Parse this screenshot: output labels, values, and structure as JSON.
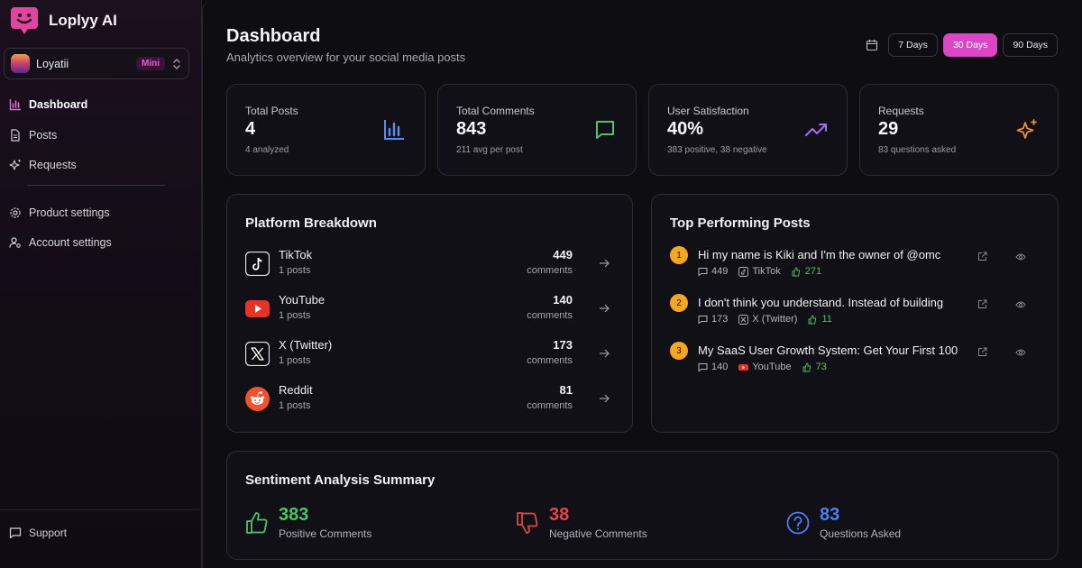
{
  "brand": {
    "name": "Loplyy AI"
  },
  "workspace": {
    "name": "Loyatii",
    "plan": "Mini"
  },
  "nav": {
    "items": [
      {
        "label": "Dashboard",
        "icon": "bar-chart-icon"
      },
      {
        "label": "Posts",
        "icon": "document-icon"
      },
      {
        "label": "Requests",
        "icon": "sparkles-icon"
      }
    ],
    "settings": [
      {
        "label": "Product settings",
        "icon": "gear-icon"
      },
      {
        "label": "Account settings",
        "icon": "user-gear-icon"
      }
    ],
    "support": "Support"
  },
  "header": {
    "title": "Dashboard",
    "subtitle": "Analytics overview for your social media posts",
    "ranges": [
      "7 Days",
      "30 Days",
      "90 Days"
    ],
    "active_range": "30 Days"
  },
  "stats": [
    {
      "label": "Total Posts",
      "value": "4",
      "note": "4 analyzed",
      "icon": "bar-chart-icon",
      "color": "#5b8def"
    },
    {
      "label": "Total Comments",
      "value": "843",
      "note": "211 avg per post",
      "icon": "message-icon",
      "color": "#4cc56a"
    },
    {
      "label": "User Satisfaction",
      "value": "40%",
      "note": "383 positive, 38 negative",
      "icon": "trending-up-icon",
      "color": "#a66df0"
    },
    {
      "label": "Requests",
      "value": "29",
      "note": "83 questions asked",
      "icon": "sparkles-icon",
      "color": "#f08a3c"
    }
  ],
  "platform_breakdown": {
    "title": "Platform Breakdown",
    "unit": "comments",
    "rows": [
      {
        "name": "TikTok",
        "posts": "1 posts",
        "count": "449",
        "icon": "tiktok-icon"
      },
      {
        "name": "YouTube",
        "posts": "1 posts",
        "count": "140",
        "icon": "youtube-icon"
      },
      {
        "name": "X (Twitter)",
        "posts": "1 posts",
        "count": "173",
        "icon": "x-icon"
      },
      {
        "name": "Reddit",
        "posts": "1 posts",
        "count": "81",
        "icon": "reddit-icon"
      }
    ]
  },
  "top_posts": {
    "title": "Top Performing Posts",
    "rows": [
      {
        "rank": "1",
        "title": "Hi my name is Kiki and I'm the owner of @omc",
        "comments": "449",
        "platform": "TikTok",
        "likes": "271"
      },
      {
        "rank": "2",
        "title": "I don't think you understand. Instead of building",
        "comments": "173",
        "platform": "X (Twitter)",
        "likes": "11"
      },
      {
        "rank": "3",
        "title": "My SaaS User Growth System: Get Your First 100",
        "comments": "140",
        "platform": "YouTube",
        "likes": "73"
      }
    ]
  },
  "sentiment": {
    "title": "Sentiment Analysis Summary",
    "items": [
      {
        "value": "383",
        "label": "Positive Comments",
        "icon": "thumbs-up-icon",
        "color": "#4cc56a"
      },
      {
        "value": "38",
        "label": "Negative Comments",
        "icon": "thumbs-down-icon",
        "color": "#e04848"
      },
      {
        "value": "83",
        "label": "Questions Asked",
        "icon": "question-icon",
        "color": "#4f7ef2"
      }
    ]
  }
}
